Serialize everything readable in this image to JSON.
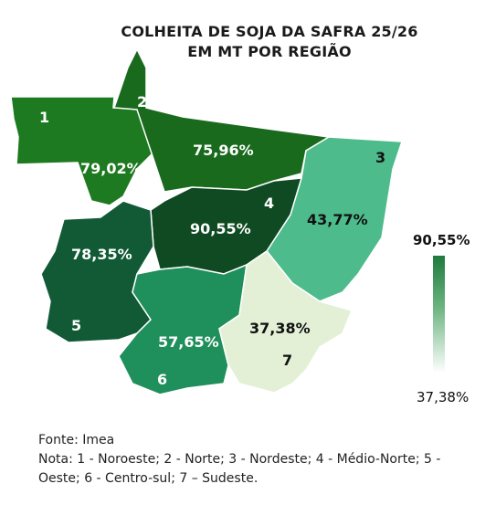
{
  "title_line1": "COLHEITA DE SOJA DA SAFRA 25/26",
  "title_line2": "EM MT POR REGIÃO",
  "regions": [
    {
      "id": "1",
      "name": "Noroeste",
      "value": "79,02%",
      "color": "#1e7a20"
    },
    {
      "id": "2",
      "name": "Norte",
      "value": "75,96%",
      "color": "#1a6a1e"
    },
    {
      "id": "3",
      "name": "Nordeste",
      "value": "43,77%",
      "color": "#4dbb8c"
    },
    {
      "id": "4",
      "name": "Médio-Norte",
      "value": "90,55%",
      "color": "#0f4a22"
    },
    {
      "id": "5",
      "name": "Oeste",
      "value": "78,35%",
      "color": "#115a35"
    },
    {
      "id": "6",
      "name": "Centro-sul",
      "value": "57,65%",
      "color": "#1f8f5c"
    },
    {
      "id": "7",
      "name": "Sudeste",
      "value": "37,38%",
      "color": "#e3f0d6"
    }
  ],
  "legend": {
    "max": "90,55%",
    "min": "37,38%"
  },
  "source": "Fonte: Imea",
  "note_line1": "Nota: 1 - Noroeste; 2 - Norte; 3 - Nordeste; 4 - Médio-Norte; 5 -",
  "note_line2": "Oeste; 6 - Centro-sul; 7 – Sudeste."
}
